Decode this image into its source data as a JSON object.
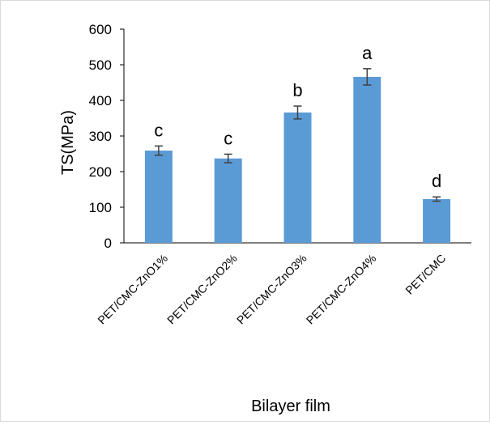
{
  "chart_data": {
    "type": "bar",
    "title": "",
    "xlabel": "Bilayer film",
    "ylabel": "TS(MPa)",
    "ylim": [
      0,
      600
    ],
    "yticks": [
      0,
      100,
      200,
      300,
      400,
      500,
      600
    ],
    "categories": [
      "PET/CMC-ZnO1%",
      "PET/CMC-ZnO2%",
      "PET/CMC-ZnO3%",
      "PET/CMC-ZnO4%",
      "PET/CMC"
    ],
    "values": [
      259,
      237,
      366,
      466,
      123
    ],
    "errors": [
      13,
      12,
      18,
      23,
      6
    ],
    "significance_letters": [
      "c",
      "c",
      "b",
      "a",
      "d"
    ],
    "bar_color": "#5b9bd5",
    "error_bar_color": "#404040",
    "grid": false,
    "legend": "none"
  }
}
